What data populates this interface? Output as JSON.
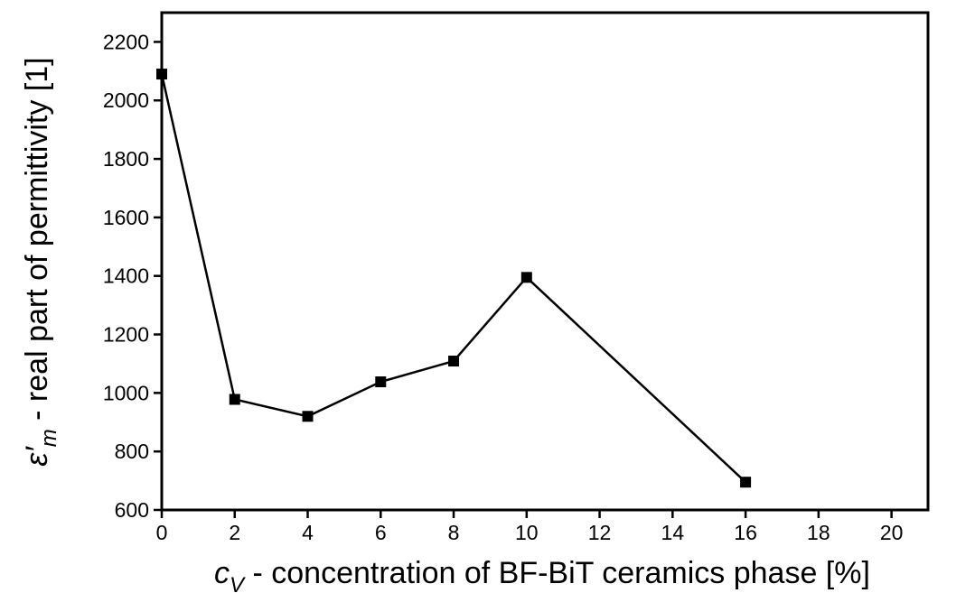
{
  "chart_data": {
    "type": "line",
    "xlabel": {
      "symbol": "c",
      "subscript": "V",
      "text": " - concentration of BF-BiT ceramics phase  [%]"
    },
    "ylabel": {
      "symbol": "ε′",
      "subscript": "m",
      "text": " - real part of permittivity [1]"
    },
    "x": [
      0,
      2,
      4,
      6,
      8,
      10,
      16
    ],
    "series": [
      {
        "color": "#000000",
        "values": [
          2090,
          978,
          920,
          1038,
          1109,
          1395,
          695
        ]
      }
    ],
    "xlim": [
      0,
      21
    ],
    "xticks": [
      0,
      2,
      4,
      6,
      8,
      10,
      12,
      14,
      16,
      18,
      20
    ],
    "ylim": [
      600,
      2300
    ],
    "yticks": [
      600,
      800,
      1000,
      1200,
      1400,
      1600,
      1800,
      2000,
      2200
    ],
    "grid": false
  }
}
